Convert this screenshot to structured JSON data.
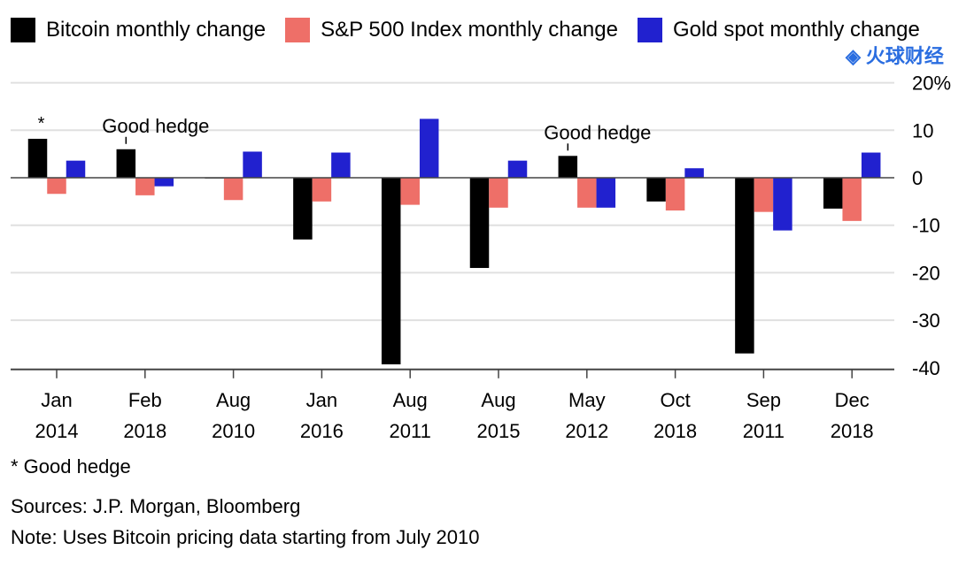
{
  "watermark": "火球财经",
  "chart_data": {
    "type": "bar",
    "categories": [
      [
        "Jan",
        "2014"
      ],
      [
        "Feb",
        "2018"
      ],
      [
        "Aug",
        "2010"
      ],
      [
        "Jan",
        "2016"
      ],
      [
        "Aug",
        "2011"
      ],
      [
        "Aug",
        "2015"
      ],
      [
        "May",
        "2012"
      ],
      [
        "Oct",
        "2018"
      ],
      [
        "Sep",
        "2011"
      ],
      [
        "Dec",
        "2018"
      ]
    ],
    "series": [
      {
        "name": "Bitcoin monthly change",
        "color": "#000000",
        "values": [
          8.2,
          6.0,
          -0.1,
          -13.0,
          -39.3,
          -19.0,
          4.6,
          -5.0,
          -37.0,
          -6.5
        ]
      },
      {
        "name": "S&P 500 Index monthly change",
        "color": "#ee6f68",
        "values": [
          -3.4,
          -3.7,
          -4.7,
          -5.0,
          -5.7,
          -6.3,
          -6.3,
          -6.9,
          -7.2,
          -9.1
        ]
      },
      {
        "name": "Gold spot monthly change",
        "color": "#2121cf",
        "values": [
          3.6,
          -1.8,
          5.5,
          5.3,
          12.4,
          3.6,
          -6.3,
          2.0,
          -11.1,
          5.3
        ]
      }
    ],
    "ylim": [
      -40,
      20
    ],
    "yticks": [
      20,
      10,
      0,
      -10,
      -20,
      -30,
      -40
    ],
    "ytick_labels": [
      "20%",
      "10",
      "0",
      "-10",
      "-20",
      "-30",
      "-40"
    ],
    "annotations": [
      {
        "text": "*",
        "category_index": 0
      },
      {
        "text": "Good hedge",
        "category_index": 1
      },
      {
        "text": "Good hedge",
        "category_index": 6
      }
    ],
    "grid": true,
    "legend": "top"
  },
  "footnotes": {
    "star": "* Good hedge",
    "sources": "Sources: J.P. Morgan, Bloomberg",
    "note": "Note: Uses Bitcoin pricing data starting from July 2010"
  }
}
